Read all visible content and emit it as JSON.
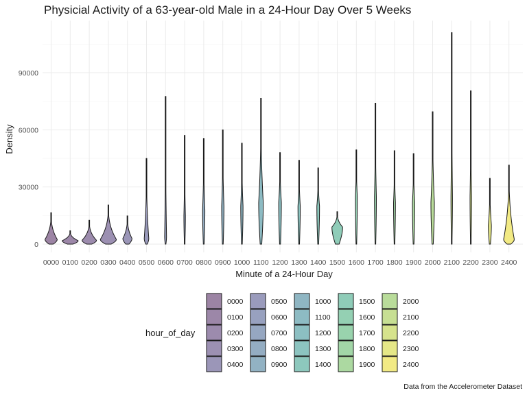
{
  "chart_data": {
    "type": "violin",
    "title": "Physicial Activity of a 63-year-old Male in a 24-Hour Day Over 5 Weeks",
    "xlabel": "Minute of a 24-Hour Day",
    "ylabel": "Density",
    "caption": "Data from the Accelerometer Dataset",
    "ylim": [
      0,
      115000
    ],
    "y_ticks": [
      0,
      30000,
      60000,
      90000
    ],
    "grid": true,
    "legend": {
      "title": "hour_of_day",
      "placement": "bottom",
      "columns": 5
    },
    "categories": [
      "0000",
      "0100",
      "0200",
      "0300",
      "0400",
      "0500",
      "0600",
      "0700",
      "0800",
      "0900",
      "1000",
      "1100",
      "1200",
      "1300",
      "1400",
      "1500",
      "1600",
      "1700",
      "1800",
      "1900",
      "2000",
      "2100",
      "2200",
      "2300",
      "2400"
    ],
    "max_values": [
      16500,
      7000,
      12500,
      20500,
      14800,
      45000,
      77500,
      57000,
      55500,
      60000,
      53000,
      76500,
      48000,
      44000,
      40000,
      17000,
      49500,
      74000,
      49000,
      47500,
      69500,
      111000,
      80500,
      34500,
      41500
    ],
    "mode_values": [
      2500,
      1800,
      2000,
      2500,
      3000,
      3000,
      4000,
      15000,
      18000,
      20000,
      20000,
      22000,
      22000,
      20000,
      20000,
      9000,
      25000,
      25000,
      22000,
      22000,
      22000,
      25000,
      25000,
      10000,
      2500
    ],
    "max_half_widths": [
      0.32,
      0.42,
      0.38,
      0.42,
      0.24,
      0.12,
      0.05,
      0.04,
      0.06,
      0.06,
      0.06,
      0.12,
      0.07,
      0.06,
      0.07,
      0.28,
      0.05,
      0.05,
      0.05,
      0.06,
      0.09,
      0.04,
      0.04,
      0.08,
      0.28
    ],
    "colors": [
      "#9c84a4",
      "#9c87a8",
      "#9c8bad",
      "#9c90b2",
      "#9b96b8",
      "#9a9bbc",
      "#98a1bf",
      "#96a7c1",
      "#94adc2",
      "#92b2c3",
      "#8fb6c3",
      "#8dbbc3",
      "#8cbfc2",
      "#8cc4c0",
      "#8dc8bd",
      "#8fccb8",
      "#94d0b3",
      "#99d3ad",
      "#a2d6a7",
      "#acd9a1",
      "#b9dc9a",
      "#c7df93",
      "#d6e38c",
      "#e5e787",
      "#f2ea84"
    ]
  }
}
